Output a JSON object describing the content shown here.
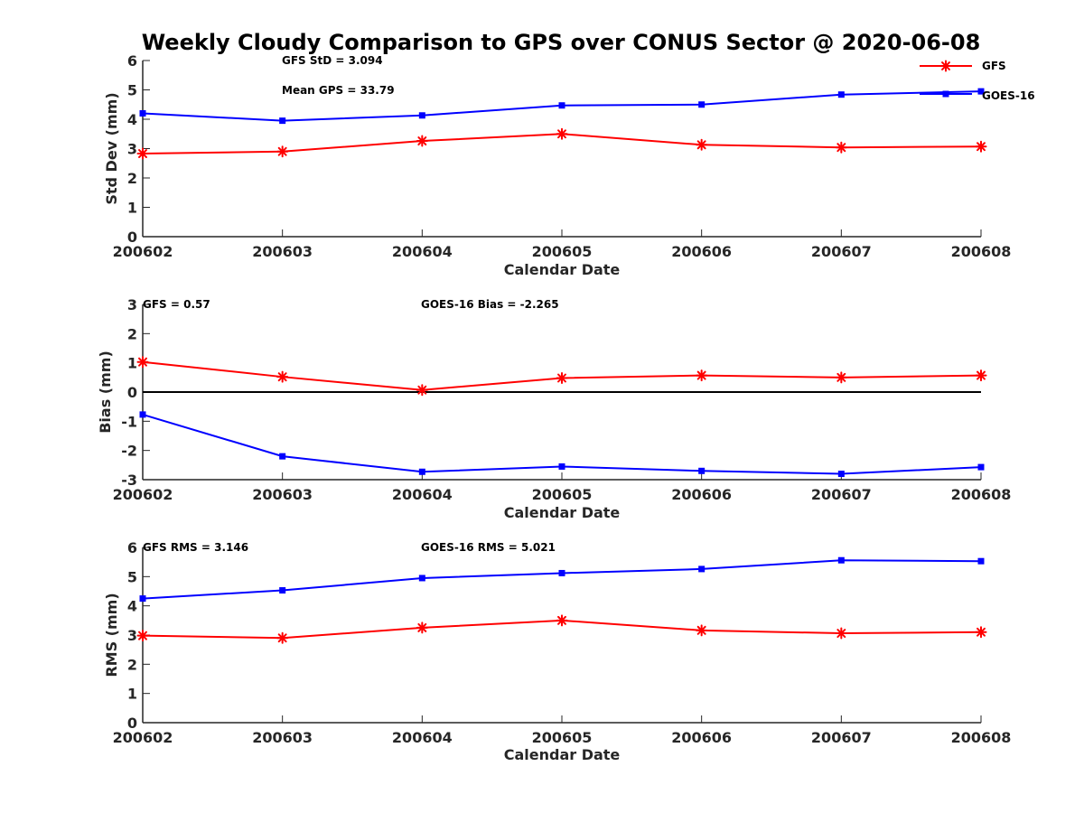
{
  "title": "Weekly Cloudy Comparison to GPS over CONUS Sector @ 2020-06-08",
  "legend": [
    {
      "name": "GFS",
      "color": "#ff0000",
      "marker": "asterisk"
    },
    {
      "name": "GOES-16",
      "color": "#0000ff",
      "marker": "square"
    }
  ],
  "chart_data": [
    {
      "type": "line",
      "title": "",
      "xlabel": "Calendar Date",
      "ylabel": "Std Dev (mm)",
      "categories": [
        "200602",
        "200603",
        "200604",
        "200605",
        "200606",
        "200607",
        "200608"
      ],
      "ylim": [
        0,
        6
      ],
      "yticks": [
        "0",
        "1",
        "2",
        "3",
        "4",
        "5",
        "6"
      ],
      "zero_line": false,
      "annotations": [
        "GFS StD = 3.094",
        "Mean GPS = 33.79"
      ],
      "series": [
        {
          "name": "GFS",
          "color": "#ff0000",
          "marker": "asterisk",
          "values": [
            2.83,
            2.9,
            3.26,
            3.5,
            3.13,
            3.04,
            3.07
          ]
        },
        {
          "name": "GOES-16",
          "color": "#0000ff",
          "marker": "square",
          "values": [
            4.2,
            3.95,
            4.13,
            4.47,
            4.5,
            4.84,
            4.95
          ]
        }
      ]
    },
    {
      "type": "line",
      "title": "",
      "xlabel": "Calendar Date",
      "ylabel": "Bias (mm)",
      "categories": [
        "200602",
        "200603",
        "200604",
        "200605",
        "200606",
        "200607",
        "200608"
      ],
      "ylim": [
        -3,
        3
      ],
      "yticks": [
        "-3",
        "-2",
        "-1",
        "0",
        "1",
        "2",
        "3"
      ],
      "zero_line": true,
      "annotations": [
        "GFS = 0.57",
        "GOES-16 Bias  = -2.265"
      ],
      "series": [
        {
          "name": "GFS",
          "color": "#ff0000",
          "marker": "asterisk",
          "values": [
            1.03,
            0.52,
            0.07,
            0.48,
            0.57,
            0.5,
            0.57
          ]
        },
        {
          "name": "GOES-16",
          "color": "#0000ff",
          "marker": "square",
          "values": [
            -0.77,
            -2.2,
            -2.73,
            -2.55,
            -2.7,
            -2.8,
            -2.57
          ]
        }
      ]
    },
    {
      "type": "line",
      "title": "",
      "xlabel": "Calendar Date",
      "ylabel": "RMS (mm)",
      "categories": [
        "200602",
        "200603",
        "200604",
        "200605",
        "200606",
        "200607",
        "200608"
      ],
      "ylim": [
        0,
        6
      ],
      "yticks": [
        "0",
        "1",
        "2",
        "3",
        "4",
        "5",
        "6"
      ],
      "zero_line": false,
      "annotations": [
        "GFS RMS = 3.146",
        "GOES-16 RMS = 5.021"
      ],
      "series": [
        {
          "name": "GFS",
          "color": "#ff0000",
          "marker": "asterisk",
          "values": [
            2.98,
            2.9,
            3.25,
            3.5,
            3.16,
            3.06,
            3.1
          ]
        },
        {
          "name": "GOES-16",
          "color": "#0000ff",
          "marker": "square",
          "values": [
            4.25,
            4.53,
            4.95,
            5.12,
            5.26,
            5.56,
            5.53
          ]
        }
      ]
    }
  ]
}
